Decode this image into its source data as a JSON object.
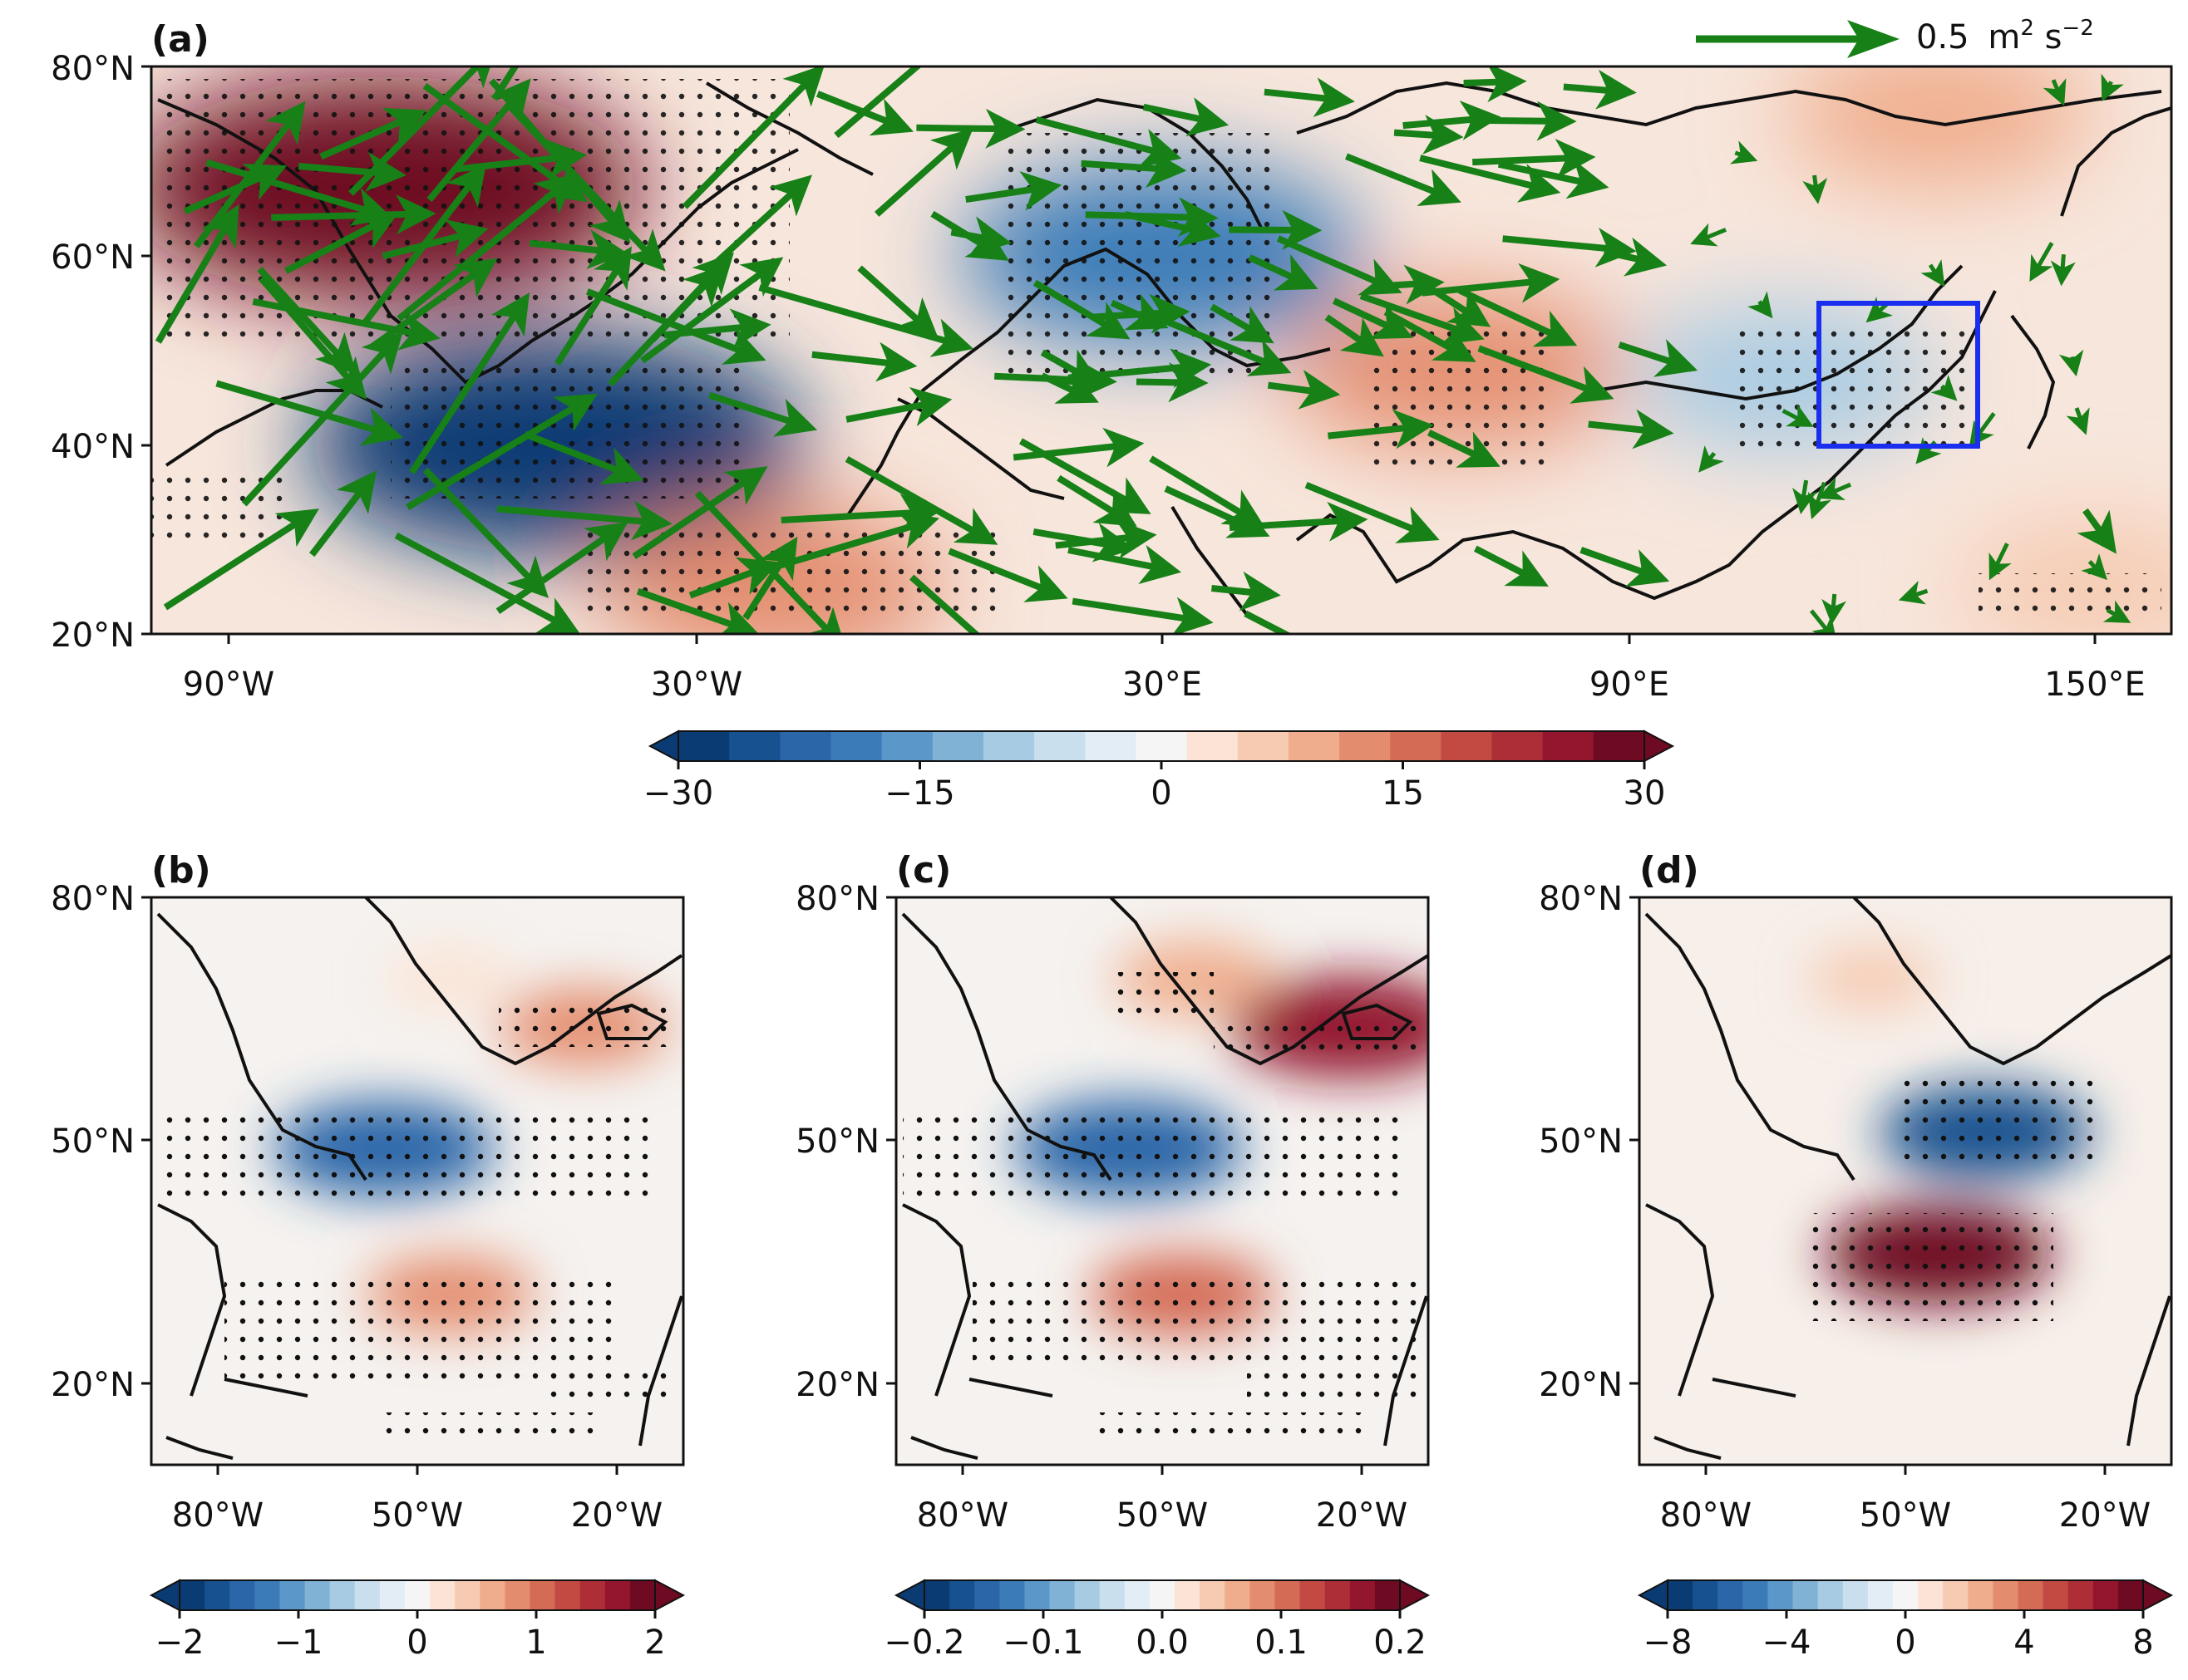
{
  "chart_data": [
    {
      "panel": "(a)",
      "type": "heatmap",
      "subtype": "filled-contour map with wave-activity flux vectors and stippling",
      "x_ticks": [
        "90°W",
        "30°W",
        "30°E",
        "90°E",
        "150°E"
      ],
      "y_ticks": [
        "80°N",
        "60°N",
        "40°N",
        "20°N"
      ],
      "lon_range": [
        -100,
        160
      ],
      "lat_range": [
        20,
        80
      ],
      "colorbar": {
        "ticks": [
          "−30",
          "−15",
          "0",
          "15",
          "30"
        ],
        "range": [
          -30,
          30
        ],
        "extend": "both"
      },
      "vector_key": {
        "value": "0.5",
        "unit_base": "m",
        "unit_exp1": "2",
        "unit_mid": " s",
        "unit_exp2": "−2"
      },
      "highlight_box": {
        "lon": [
          106,
          126
        ],
        "lat": [
          40,
          55
        ],
        "color": "#1a2ef0"
      },
      "anomaly_centers": [
        {
          "lon": -70,
          "lat": 67,
          "value": 32
        },
        {
          "lon": -48,
          "lat": 40,
          "value": -30
        },
        {
          "lon": -20,
          "lat": 25,
          "value": 14
        },
        {
          "lon": 30,
          "lat": 60,
          "value": -20
        },
        {
          "lon": 68,
          "lat": 48,
          "value": 13
        },
        {
          "lon": 110,
          "lat": 47,
          "value": -10
        },
        {
          "lon": 130,
          "lat": 75,
          "value": 10
        },
        {
          "lon": 150,
          "lat": 25,
          "value": 7
        }
      ]
    },
    {
      "panel": "(b)",
      "type": "heatmap",
      "x_ticks": [
        "80°W",
        "50°W",
        "20°W"
      ],
      "y_ticks": [
        "80°N",
        "50°N",
        "20°N"
      ],
      "lon_range": [
        -90,
        -10
      ],
      "lat_range": [
        10,
        80
      ],
      "colorbar": {
        "ticks": [
          "−2",
          "−1",
          "0",
          "1",
          "2"
        ],
        "range": [
          -2,
          2
        ],
        "extend": "both"
      },
      "anomaly_centers": [
        {
          "lon": -55,
          "lat": 49,
          "value": -1.5
        },
        {
          "lon": -45,
          "lat": 31,
          "value": 0.8
        },
        {
          "lon": -25,
          "lat": 64,
          "value": 0.8
        },
        {
          "lon": -45,
          "lat": 70,
          "value": 0.3
        }
      ]
    },
    {
      "panel": "(c)",
      "type": "heatmap",
      "x_ticks": [
        "80°W",
        "50°W",
        "20°W"
      ],
      "y_ticks": [
        "80°N",
        "50°N",
        "20°N"
      ],
      "lon_range": [
        -90,
        -10
      ],
      "lat_range": [
        10,
        80
      ],
      "colorbar": {
        "ticks": [
          "−0.2",
          "−0.1",
          "0.0",
          "0.1",
          "0.2"
        ],
        "range": [
          -0.2,
          0.2
        ],
        "extend": "both"
      },
      "anomaly_centers": [
        {
          "lon": -55,
          "lat": 49,
          "value": -0.16
        },
        {
          "lon": -47,
          "lat": 31,
          "value": 0.1
        },
        {
          "lon": -22,
          "lat": 64,
          "value": 0.17
        },
        {
          "lon": -45,
          "lat": 70,
          "value": 0.07
        }
      ]
    },
    {
      "panel": "(d)",
      "type": "heatmap",
      "x_ticks": [
        "80°W",
        "50°W",
        "20°W"
      ],
      "y_ticks": [
        "80°N",
        "50°N",
        "20°N"
      ],
      "lon_range": [
        -90,
        -10
      ],
      "lat_range": [
        10,
        80
      ],
      "colorbar": {
        "ticks": [
          "−8",
          "−4",
          "0",
          "4",
          "8"
        ],
        "range": [
          -8,
          8
        ],
        "extend": "both"
      },
      "anomaly_centers": [
        {
          "lon": -38,
          "lat": 51,
          "value": -7
        },
        {
          "lon": -45,
          "lat": 36,
          "value": 8
        },
        {
          "lon": -55,
          "lat": 70,
          "value": 2
        }
      ]
    }
  ]
}
